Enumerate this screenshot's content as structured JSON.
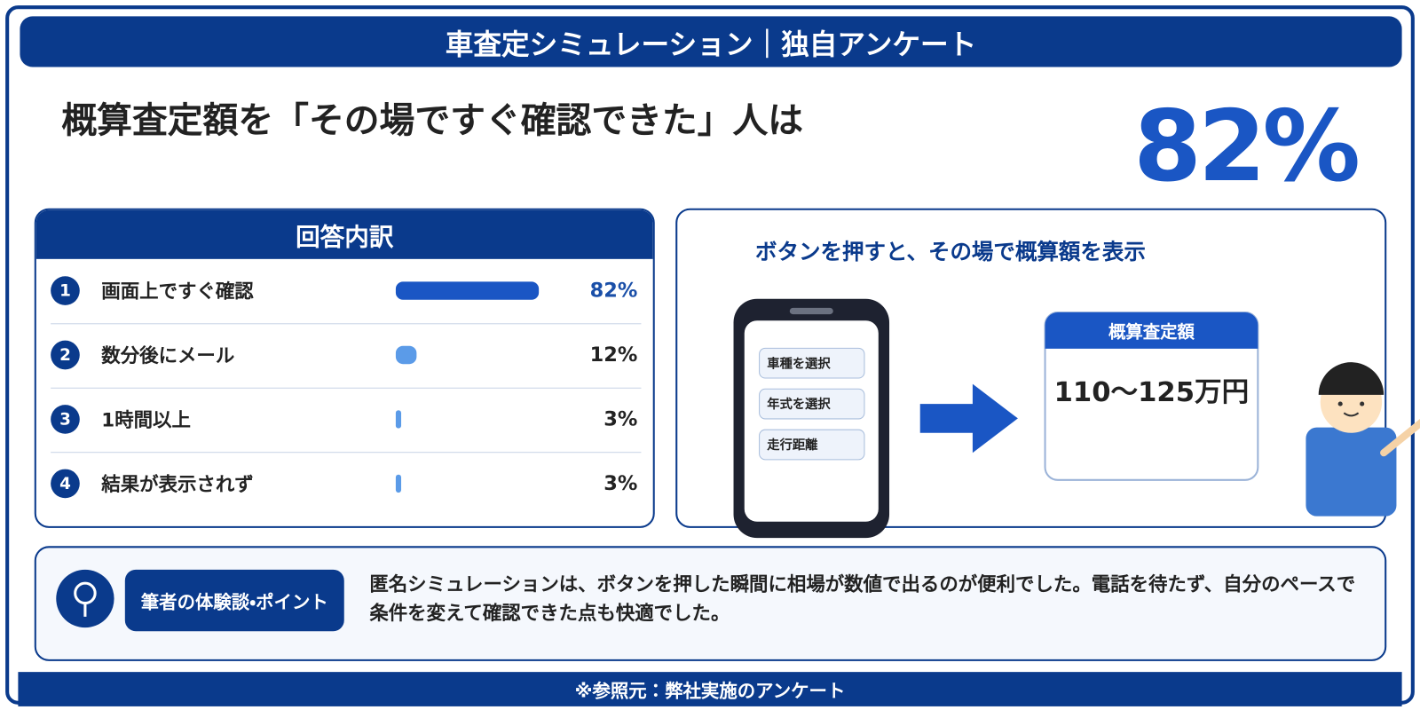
{
  "header": {
    "title": "車査定シミュレーション｜独自アンケート"
  },
  "headline": {
    "text": "概算査定額を「その場ですぐ確認できた」人は",
    "value_label": "82%"
  },
  "breakdown": {
    "title": "回答内訳",
    "items": [
      {
        "number": 1,
        "label": "画面上ですぐ確認",
        "value": 82,
        "value_label": "82%",
        "color": "#1a56c4",
        "label_color": "#1a4fa8"
      },
      {
        "number": 2,
        "label": "数分後にメール",
        "value": 12,
        "value_label": "12%",
        "color": "#5b9be8",
        "label_color": "#222222"
      },
      {
        "number": 3,
        "label": "1時間以上",
        "value": 3,
        "value_label": "3%",
        "color": "#5b9be8",
        "label_color": "#222222"
      },
      {
        "number": 4,
        "label": "結果が表示されず",
        "value": 3,
        "value_label": "3%",
        "color": "#5b9be8",
        "label_color": "#222222"
      }
    ]
  },
  "illustration": {
    "caption": "ボタンを押すと、その場で概算額を表示",
    "phone_buttons": [
      "車種を選択",
      "年式を選択",
      "走行距離"
    ],
    "result_title": "概算査定額",
    "result_value": "110〜125万円"
  },
  "comment": {
    "badge": "筆者の体験談・ポイント",
    "text": "匿名シミュレーションは、ボタンを押した瞬間に相場が数値で出るのが便利でした。電話を待たず、自分のペースで条件を変えて確認できた点も快適でした。"
  },
  "footer": {
    "text": "※参照元：弊社実施のアンケート"
  }
}
